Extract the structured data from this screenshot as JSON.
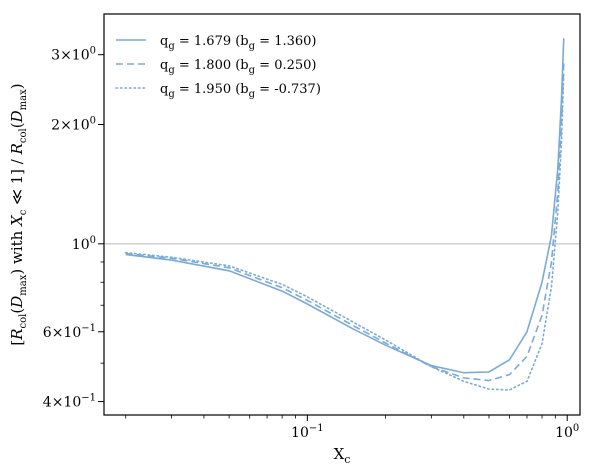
{
  "chart_data": {
    "type": "line",
    "title": "",
    "xlabel": "X",
    "xlabel_sub": "c",
    "ylabel": "[R_col(D_max) with X_c ≪ 1] / R_col(D_max)",
    "xscale": "log",
    "yscale": "log",
    "xlim": [
      0.0165,
      1.12
    ],
    "ylim": [
      0.37,
      3.8
    ],
    "grid": false,
    "legend_position": "top-left",
    "reference_line": {
      "y": 1.0,
      "color": "#cccccc"
    },
    "x_ticks": [
      {
        "value": 0.1,
        "base": "10",
        "exp": "−1"
      },
      {
        "value": 1.0,
        "base": "10",
        "exp": "0"
      }
    ],
    "y_ticks": [
      {
        "value": 0.4,
        "mant": "4",
        "exp": "−1"
      },
      {
        "value": 0.6,
        "mant": "6",
        "exp": "−1"
      },
      {
        "value": 1.0,
        "mant": "",
        "exp": "0"
      },
      {
        "value": 2.0,
        "mant": "2",
        "exp": "0"
      },
      {
        "value": 3.0,
        "mant": "3",
        "exp": "0"
      }
    ],
    "x_minor_ticks": [
      0.02,
      0.03,
      0.04,
      0.05,
      0.06,
      0.07,
      0.08,
      0.09,
      0.2,
      0.3,
      0.4,
      0.5,
      0.6,
      0.7,
      0.8,
      0.9
    ],
    "y_minor_ticks": [
      0.5,
      0.7,
      0.8,
      0.9
    ],
    "series": [
      {
        "name": "q_g = 1.679 (b_g = 1.360)",
        "label_parts": {
          "q_sub": "g",
          "q_val": " = 1.679 (b",
          "b_sub": "g",
          "b_val": " = 1.360)"
        },
        "dash": "solid",
        "color": "#7aaad8",
        "x": [
          0.02,
          0.03,
          0.05,
          0.08,
          0.1,
          0.15,
          0.2,
          0.3,
          0.4,
          0.5,
          0.6,
          0.7,
          0.8,
          0.87,
          0.92,
          0.95,
          0.97
        ],
        "y": [
          0.94,
          0.91,
          0.855,
          0.76,
          0.705,
          0.61,
          0.555,
          0.493,
          0.473,
          0.475,
          0.51,
          0.6,
          0.8,
          1.05,
          1.55,
          2.3,
          3.3
        ]
      },
      {
        "name": "q_g = 1.800 (b_g = 0.250)",
        "label_parts": {
          "q_sub": "g",
          "q_val": " = 1.800 (b",
          "b_sub": "g",
          "b_val": " = 0.250)"
        },
        "dash": "dashed",
        "color": "#7aaad8",
        "x": [
          0.02,
          0.03,
          0.05,
          0.08,
          0.1,
          0.15,
          0.2,
          0.3,
          0.4,
          0.5,
          0.6,
          0.7,
          0.8,
          0.87,
          0.92,
          0.95,
          0.97
        ],
        "y": [
          0.945,
          0.92,
          0.87,
          0.775,
          0.72,
          0.622,
          0.562,
          0.49,
          0.459,
          0.452,
          0.468,
          0.52,
          0.66,
          0.9,
          1.35,
          2.0,
          2.85
        ]
      },
      {
        "name": "q_g = 1.950 (b_g = -0.737)",
        "label_parts": {
          "q_sub": "g",
          "q_val": " = 1.950 (b",
          "b_sub": "g",
          "b_val": " = -0.737)"
        },
        "dash": "dotted",
        "color": "#7aaad8",
        "x": [
          0.02,
          0.03,
          0.05,
          0.08,
          0.1,
          0.15,
          0.2,
          0.3,
          0.4,
          0.5,
          0.6,
          0.7,
          0.8,
          0.87,
          0.92,
          0.95,
          0.97
        ],
        "y": [
          0.95,
          0.925,
          0.88,
          0.79,
          0.735,
          0.635,
          0.572,
          0.49,
          0.45,
          0.43,
          0.428,
          0.45,
          0.56,
          0.78,
          1.2,
          1.8,
          2.7
        ]
      }
    ]
  }
}
